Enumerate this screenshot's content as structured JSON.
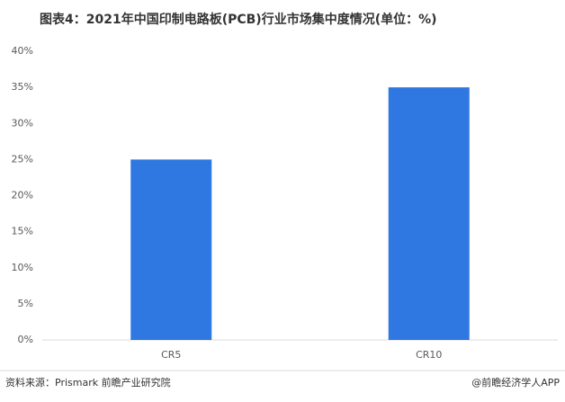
{
  "chart_data": {
    "type": "bar",
    "title": "图表4：2021年中国印制电路板(PCB)行业市场集中度情况(单位：%)",
    "categories": [
      "CR5",
      "CR10"
    ],
    "values": [
      25,
      35
    ],
    "color": "#2f77e1",
    "ylim": [
      0,
      40
    ],
    "yticks": [
      {
        "value": 0,
        "label": "0%"
      },
      {
        "value": 5,
        "label": "5%"
      },
      {
        "value": 10,
        "label": "10%"
      },
      {
        "value": 15,
        "label": "15%"
      },
      {
        "value": 20,
        "label": "20%"
      },
      {
        "value": 25,
        "label": "25%"
      },
      {
        "value": 30,
        "label": "30%"
      },
      {
        "value": 35,
        "label": "35%"
      },
      {
        "value": 40,
        "label": "40%"
      }
    ],
    "grid": false,
    "source": "资料来源：Prismark 前瞻产业研究院",
    "credit": "@前瞻经济学人APP"
  }
}
